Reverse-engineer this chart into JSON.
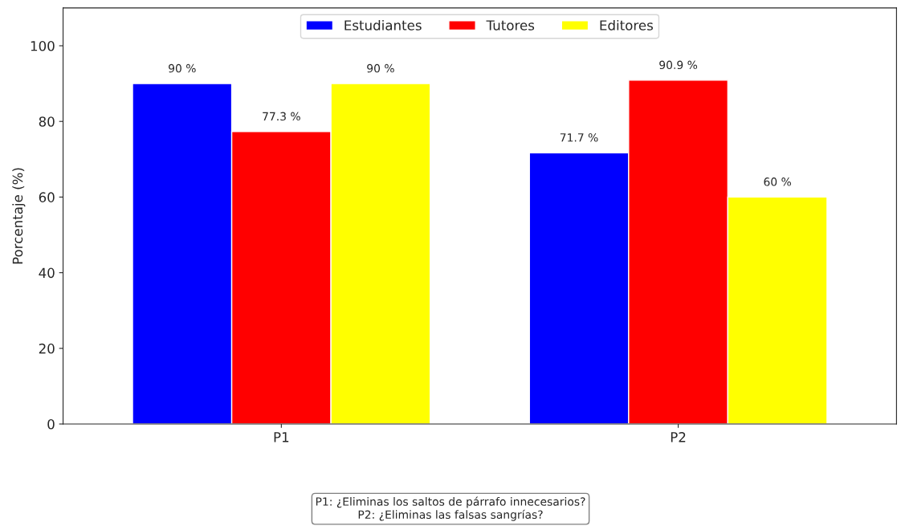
{
  "chart_data": {
    "type": "bar",
    "ylabel": "Porcentaje (%)",
    "categories": [
      "P1",
      "P2"
    ],
    "series": [
      {
        "name": "Estudiantes",
        "color": "#0000ff",
        "values": [
          90,
          71.7
        ],
        "value_labels": [
          "90 %",
          "71.7 %"
        ]
      },
      {
        "name": "Tutores",
        "color": "#ff0000",
        "values": [
          77.3,
          90.9
        ],
        "value_labels": [
          "77.3 %",
          "90.9 %"
        ]
      },
      {
        "name": "Editores",
        "color": "#ffff00",
        "values": [
          90,
          60
        ],
        "value_labels": [
          "90 %",
          "60 %"
        ]
      }
    ],
    "ylim": [
      0,
      110
    ],
    "yticks": [
      0,
      20,
      40,
      60,
      80,
      100
    ],
    "grid": false,
    "legend": "top",
    "annotations": [
      "P1: ¿Eliminas los saltos de párrafo innecesarios?\nP2: ¿Eliminas las falsas sangrías?"
    ]
  }
}
